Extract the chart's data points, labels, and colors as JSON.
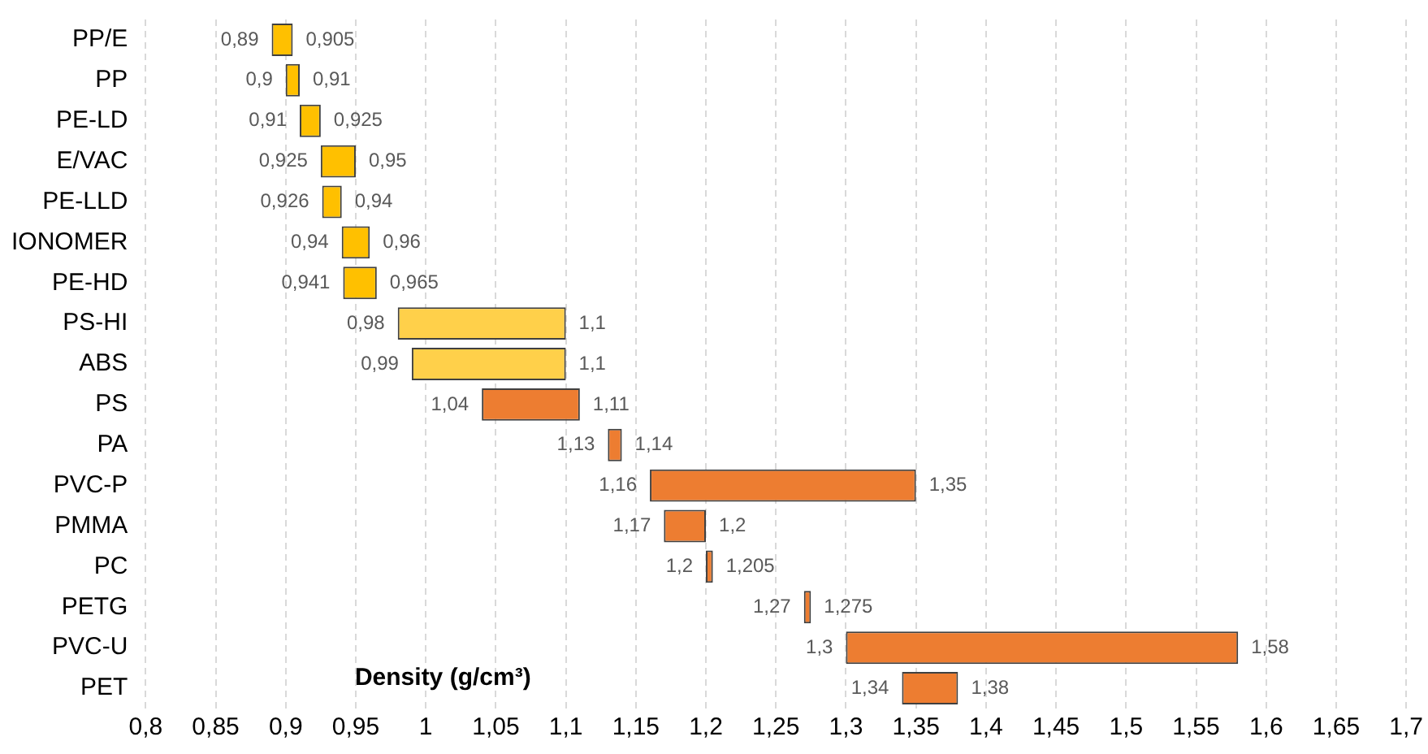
{
  "chart_data": {
    "type": "bar",
    "orientation": "horizontal",
    "xlabel": "Density (g/cm³)",
    "categories": [
      "PP/E",
      "PP",
      "PE-LD",
      "E/VAC",
      "PE-LLD",
      "IONOMER",
      "PE-HD",
      "PS-HI",
      "ABS",
      "PS",
      "PA",
      "PVC-P",
      "PMMA",
      "PC",
      "PETG",
      "PVC-U",
      "PET"
    ],
    "base": [
      0.89,
      0.9,
      0.91,
      0.925,
      0.926,
      0.94,
      0.941,
      0.98,
      0.99,
      1.04,
      1.13,
      1.16,
      1.17,
      1.2,
      1.27,
      1.3,
      1.34
    ],
    "values": [
      0.015,
      0.01,
      0.015,
      0.025,
      0.014,
      0.02,
      0.024,
      0.12,
      0.11,
      0.07,
      0.01,
      0.19,
      0.03,
      0.005,
      0.005,
      0.28,
      0.04
    ],
    "colors": [
      "#ffc000",
      "#ffc000",
      "#ffc000",
      "#ffc000",
      "#ffc000",
      "#ffc000",
      "#ffc000",
      "#ffd04a",
      "#ffd04a",
      "#ed7d31",
      "#ed7d31",
      "#ed7d31",
      "#ed7d31",
      "#ed7d31",
      "#ed7d31",
      "#ed7d31",
      "#ed7d31"
    ],
    "xlim": [
      0.8,
      1.7
    ],
    "xticks": [
      {
        "value": 0.8,
        "label": "0,8"
      },
      {
        "value": 0.85,
        "label": "0,85"
      },
      {
        "value": 0.9,
        "label": "0,9"
      },
      {
        "value": 0.95,
        "label": "0,95"
      },
      {
        "value": 1,
        "label": "1"
      },
      {
        "value": 1.05,
        "label": "1,05"
      },
      {
        "value": 1.1,
        "label": "1,1"
      },
      {
        "value": 1.15,
        "label": "1,15"
      },
      {
        "value": 1.2,
        "label": "1,2"
      },
      {
        "value": 1.25,
        "label": "1,25"
      },
      {
        "value": 1.3,
        "label": "1,3"
      },
      {
        "value": 1.35,
        "label": "1,35"
      },
      {
        "value": 1.4,
        "label": "1,4"
      },
      {
        "value": 1.45,
        "label": "1,45"
      },
      {
        "value": 1.5,
        "label": "1,5"
      },
      {
        "value": 1.55,
        "label": "1,55"
      },
      {
        "value": 1.6,
        "label": "1,6"
      },
      {
        "value": 1.65,
        "label": "1,65"
      },
      {
        "value": 1.7,
        "label": "1,7"
      }
    ],
    "grid": "x",
    "legend": false,
    "annotations": [
      {
        "text": "0,89",
        "x": 0.89,
        "y": "PP/E"
      },
      {
        "text": "0,905",
        "x": 0.905,
        "y": "PP/E"
      },
      {
        "text": "0,9",
        "x": 0.9,
        "y": "PP"
      },
      {
        "text": "0,91",
        "x": 0.91,
        "y": "PP"
      },
      {
        "text": "0,91",
        "x": 0.91,
        "y": "PE-LD"
      },
      {
        "text": "0,925",
        "x": 0.925,
        "y": "PE-LD"
      },
      {
        "text": "0,925",
        "x": 0.925,
        "y": "E/VAC"
      },
      {
        "text": "0,95",
        "x": 0.95,
        "y": "E/VAC"
      },
      {
        "text": "0,926",
        "x": 0.926,
        "y": "PE-LLD"
      },
      {
        "text": "0,94",
        "x": 0.94,
        "y": "PE-LLD"
      },
      {
        "text": "0,94",
        "x": 0.94,
        "y": "IONOMER"
      },
      {
        "text": "0,96",
        "x": 0.96,
        "y": "IONOMER"
      },
      {
        "text": "0,941",
        "x": 0.941,
        "y": "PE-HD"
      },
      {
        "text": "0,965",
        "x": 0.965,
        "y": "PE-HD"
      },
      {
        "text": "0,98",
        "x": 0.98,
        "y": "PS-HI"
      },
      {
        "text": "1,1",
        "x": 1.1,
        "y": "PS-HI"
      },
      {
        "text": "0,99",
        "x": 0.99,
        "y": "ABS"
      },
      {
        "text": "1,1",
        "x": 1.1,
        "y": "ABS"
      },
      {
        "text": "1,04",
        "x": 1.04,
        "y": "PS"
      },
      {
        "text": "1,11",
        "x": 1.11,
        "y": "PS"
      },
      {
        "text": "1,13",
        "x": 1.13,
        "y": "PA"
      },
      {
        "text": "1,14",
        "x": 1.14,
        "y": "PA"
      },
      {
        "text": "1,16",
        "x": 1.16,
        "y": "PVC-P"
      },
      {
        "text": "1,35",
        "x": 1.35,
        "y": "PVC-P"
      },
      {
        "text": "1,17",
        "x": 1.17,
        "y": "PMMA"
      },
      {
        "text": "1,2",
        "x": 1.2,
        "y": "PMMA"
      },
      {
        "text": "1,2",
        "x": 1.2,
        "y": "PC"
      },
      {
        "text": "1,205",
        "x": 1.205,
        "y": "PC"
      },
      {
        "text": "1,27",
        "x": 1.27,
        "y": "PETG"
      },
      {
        "text": "1,275",
        "x": 1.275,
        "y": "PETG"
      },
      {
        "text": "1,3",
        "x": 1.3,
        "y": "PVC-U"
      },
      {
        "text": "1,58",
        "x": 1.58,
        "y": "PVC-U"
      },
      {
        "text": "1,34",
        "x": 1.34,
        "y": "PET"
      },
      {
        "text": "1,38",
        "x": 1.38,
        "y": "PET"
      }
    ]
  }
}
